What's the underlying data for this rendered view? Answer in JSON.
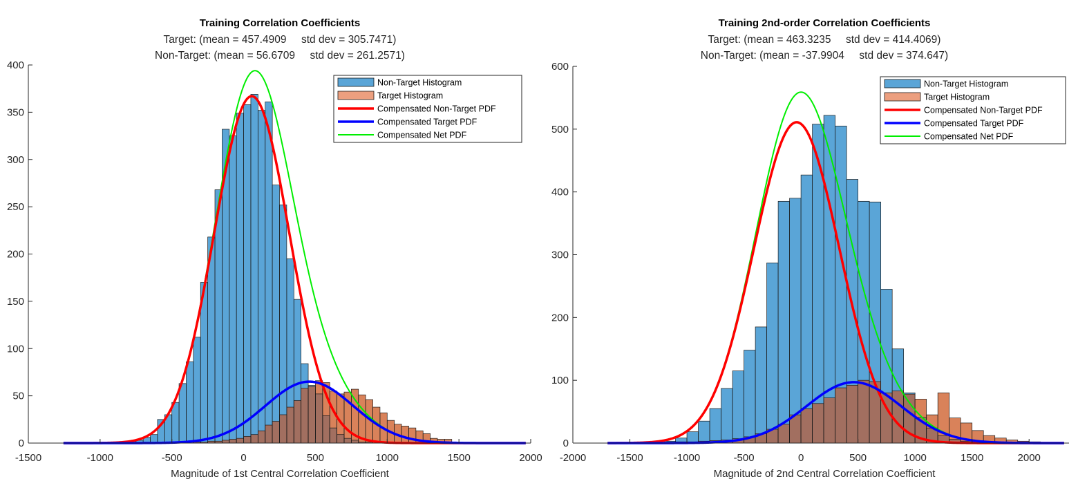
{
  "chart_data": [
    {
      "type": "histogram",
      "title": "Training Correlation Coefficients",
      "subtitle_lines": [
        "Target: (mean = 457.4909     std dev = 305.7471)",
        "Non-Target: (mean = 56.6709     std dev = 261.2571)"
      ],
      "xlabel": "Magnitude of 1st Central Correlation Coefficient",
      "ylabel": "",
      "xlim": [
        -1500,
        2000
      ],
      "ylim": [
        0,
        400
      ],
      "xticks": [
        -1500,
        -1000,
        -500,
        0,
        500,
        1000,
        1500,
        2000
      ],
      "yticks": [
        0,
        50,
        100,
        150,
        200,
        250,
        300,
        350,
        400
      ],
      "grid": false,
      "legend_position": "top-right",
      "legend": [
        {
          "label": "Non-Target Histogram",
          "kind": "patch",
          "color": "#5aa5d7"
        },
        {
          "label": "Target Histogram",
          "kind": "patch",
          "color": "#ec9f7f"
        },
        {
          "label": "Compensated Non-Target PDF",
          "kind": "line",
          "color": "#ff0000"
        },
        {
          "label": "Compensated Target PDF",
          "kind": "line",
          "color": "#0000ff"
        },
        {
          "label": "Compensated Net PDF",
          "kind": "line",
          "color": "#00ee00"
        }
      ],
      "bin_width": 50,
      "series": [
        {
          "name": "Non-Target Histogram",
          "bin_start": -850,
          "values": [
            1,
            2,
            3,
            6,
            9,
            25,
            30,
            43,
            63,
            86,
            112,
            170,
            218,
            268,
            332,
            325,
            349,
            358,
            369,
            352,
            361,
            273,
            252,
            195,
            152,
            84,
            61,
            52,
            29,
            16,
            9,
            5,
            3,
            1,
            1,
            0,
            1
          ]
        },
        {
          "name": "Target Histogram",
          "bin_start": -850,
          "values": [
            0,
            0,
            0,
            0,
            0,
            0,
            0,
            0,
            0,
            1,
            1,
            1,
            2,
            2,
            3,
            4,
            5,
            7,
            9,
            13,
            19,
            23,
            30,
            38,
            45,
            58,
            60,
            66,
            64,
            55,
            52,
            54,
            57,
            51,
            46,
            38,
            32,
            24,
            20,
            18,
            16,
            13,
            10,
            5,
            4,
            4
          ]
        }
      ],
      "pdfs": [
        {
          "name": "Compensated Non-Target PDF",
          "mean": 56.6709,
          "std": 261.2571,
          "peak": 367,
          "color": "#ff0000"
        },
        {
          "name": "Compensated Target PDF",
          "mean": 457.4909,
          "std": 305.7471,
          "peak": 65,
          "color": "#0000ff"
        },
        {
          "name": "Compensated Net PDF",
          "peak": 394,
          "color": "#00ee00"
        }
      ]
    },
    {
      "type": "histogram",
      "title": "Training 2nd-order Correlation Coefficients",
      "subtitle_lines": [
        "Target: (mean = 463.3235     std dev = 414.4069)",
        "Non-Target: (mean = -37.9904     std dev = 374.647)"
      ],
      "xlabel": "Magnitude of 2nd Central Correlation Coefficient",
      "ylabel": "",
      "xlim": [
        -2000,
        2350
      ],
      "ylim": [
        0,
        600
      ],
      "xticks": [
        -2000,
        -1500,
        -1000,
        -500,
        0,
        500,
        1000,
        1500,
        2000
      ],
      "yticks": [
        0,
        100,
        200,
        300,
        400,
        500,
        600
      ],
      "grid": false,
      "legend_position": "top-right",
      "legend": [
        {
          "label": "Non-Target Histogram",
          "kind": "patch",
          "color": "#5aa5d7"
        },
        {
          "label": "Target Histogram",
          "kind": "patch",
          "color": "#ec9f7f"
        },
        {
          "label": "Compensated Non-Target PDF",
          "kind": "line",
          "color": "#ff0000"
        },
        {
          "label": "Compensated Target PDF",
          "kind": "line",
          "color": "#0000ff"
        },
        {
          "label": "Compensated Net PDF",
          "kind": "line",
          "color": "#00ee00"
        }
      ],
      "bin_width": 100,
      "series": [
        {
          "name": "Non-Target Histogram",
          "bin_start": -1200,
          "values": [
            3,
            8,
            18,
            35,
            55,
            87,
            115,
            148,
            185,
            287,
            385,
            390,
            427,
            508,
            522,
            505,
            420,
            385,
            384,
            245,
            150,
            80,
            41,
            24,
            12,
            6,
            3,
            2
          ]
        },
        {
          "name": "Target Histogram",
          "bin_start": -1200,
          "values": [
            1,
            2,
            2,
            3,
            4,
            5,
            7,
            10,
            15,
            22,
            30,
            45,
            55,
            63,
            72,
            88,
            92,
            100,
            98,
            80,
            83,
            78,
            70,
            45,
            80,
            40,
            32,
            20,
            12,
            8,
            5,
            3,
            2
          ]
        }
      ],
      "pdfs": [
        {
          "name": "Compensated Non-Target PDF",
          "mean": -37.9904,
          "std": 374.647,
          "peak": 511,
          "color": "#ff0000"
        },
        {
          "name": "Compensated Target PDF",
          "mean": 463.3235,
          "std": 414.4069,
          "peak": 97,
          "color": "#0000ff"
        },
        {
          "name": "Compensated Net PDF",
          "peak": 559,
          "color": "#00ee00"
        }
      ]
    }
  ],
  "colors": {
    "nontarget_fill": "#5aa5d7",
    "target_fill": "#d9825a",
    "overlap_fill": "#a26f60",
    "axis": "#262626",
    "text": "#262626",
    "title": "#000000"
  }
}
